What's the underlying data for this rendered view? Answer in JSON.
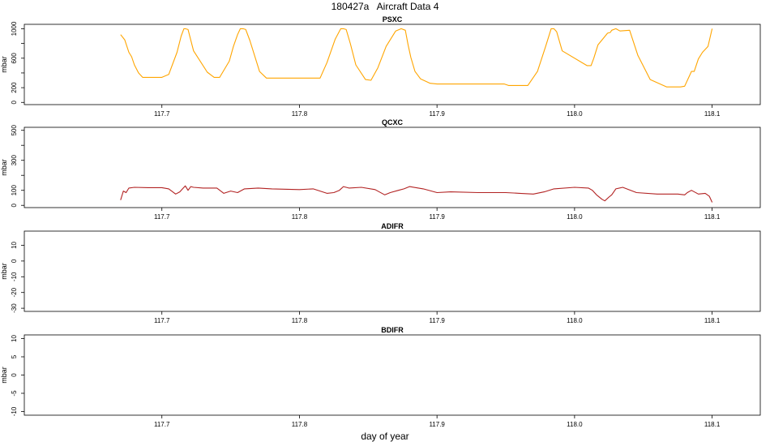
{
  "title": "180427a   Aircraft Data 4",
  "xlabel": "day of year",
  "chart_data": [
    {
      "type": "line",
      "title": "PSXC",
      "ylabel": "mbar",
      "color": "#FFA500",
      "xlim": [
        117.6,
        118.135
      ],
      "ylim": [
        -30,
        1060
      ],
      "xticks": [
        117.7,
        117.8,
        117.9,
        118.0,
        118.1
      ],
      "yticks": [
        0,
        200,
        600,
        1000
      ],
      "x": [
        117.67,
        117.673,
        117.676,
        117.678,
        117.68,
        117.683,
        117.686,
        117.69,
        117.7,
        117.705,
        117.711,
        117.714,
        117.716,
        117.717,
        117.719,
        117.723,
        117.733,
        117.738,
        117.742,
        117.749,
        117.752,
        117.755,
        117.757,
        117.759,
        117.761,
        117.764,
        117.771,
        117.776,
        117.782,
        117.801,
        117.815,
        117.82,
        117.826,
        117.83,
        117.832,
        117.834,
        117.837,
        117.841,
        117.848,
        117.852,
        117.857,
        117.863,
        117.87,
        117.874,
        117.877,
        117.879,
        117.881,
        117.884,
        117.888,
        117.895,
        117.9,
        117.91,
        117.93,
        117.949,
        117.952,
        117.966,
        117.973,
        117.979,
        117.983,
        117.985,
        117.987,
        117.991,
        118.009,
        118.012,
        118.014,
        118.017,
        118.024,
        118.026,
        118.027,
        118.03,
        118.033,
        118.04,
        118.046,
        118.055,
        118.067,
        118.074,
        118.077,
        118.08,
        118.085,
        118.087,
        118.09,
        118.093,
        118.097,
        118.1
      ],
      "y": [
        920,
        850,
        680,
        620,
        510,
        400,
        340,
        340,
        340,
        380,
        680,
        900,
        1000,
        1000,
        990,
        700,
        410,
        340,
        340,
        560,
        760,
        920,
        1000,
        1000,
        990,
        840,
        420,
        330,
        330,
        330,
        330,
        540,
        860,
        1000,
        1000,
        990,
        800,
        510,
        310,
        300,
        470,
        760,
        970,
        1000,
        980,
        780,
        610,
        420,
        320,
        260,
        250,
        250,
        250,
        250,
        230,
        230,
        420,
        760,
        1000,
        1000,
        960,
        700,
        500,
        500,
        600,
        780,
        940,
        950,
        980,
        1000,
        970,
        980,
        640,
        310,
        210,
        210,
        210,
        220,
        420,
        420,
        590,
        680,
        760,
        1000
      ]
    },
    {
      "type": "line",
      "title": "QCXC",
      "ylabel": "mbar",
      "color": "#B22222",
      "xlim": [
        117.6,
        118.135
      ],
      "ylim": [
        -15,
        520
      ],
      "xticks": [
        117.7,
        117.8,
        117.9,
        118.0,
        118.1
      ],
      "yticks": [
        0,
        100,
        300,
        500
      ],
      "x": [
        117.67,
        117.672,
        117.674,
        117.676,
        117.68,
        117.69,
        117.7,
        117.705,
        117.71,
        117.713,
        117.715,
        117.717,
        117.719,
        117.721,
        117.723,
        117.73,
        117.74,
        117.745,
        117.75,
        117.755,
        117.76,
        117.77,
        117.78,
        117.8,
        117.81,
        117.815,
        117.82,
        117.825,
        117.829,
        117.832,
        117.836,
        117.845,
        117.855,
        117.862,
        117.866,
        117.872,
        117.876,
        117.88,
        117.89,
        117.9,
        117.91,
        117.93,
        117.95,
        117.96,
        117.97,
        117.978,
        117.985,
        118.0,
        118.01,
        118.013,
        118.016,
        118.02,
        118.022,
        118.025,
        118.027,
        118.03,
        118.035,
        118.045,
        118.06,
        118.075,
        118.08,
        118.082,
        118.085,
        118.09,
        118.095,
        118.098,
        118.1
      ],
      "y": [
        35,
        95,
        85,
        115,
        120,
        118,
        118,
        110,
        75,
        90,
        110,
        130,
        100,
        125,
        120,
        115,
        115,
        80,
        95,
        85,
        110,
        115,
        110,
        105,
        110,
        95,
        80,
        85,
        100,
        125,
        115,
        120,
        105,
        70,
        85,
        100,
        110,
        125,
        110,
        85,
        90,
        85,
        85,
        80,
        75,
        90,
        110,
        120,
        115,
        100,
        70,
        40,
        30,
        55,
        70,
        110,
        120,
        85,
        75,
        75,
        70,
        85,
        100,
        75,
        80,
        60,
        20
      ]
    },
    {
      "type": "line",
      "title": "ADIFR",
      "ylabel": "mbar",
      "xlim": [
        117.6,
        118.135
      ],
      "ylim": [
        -32,
        19
      ],
      "xticks": [
        117.7,
        117.8,
        117.9,
        118.0,
        118.1
      ],
      "yticks": [
        -30,
        -20,
        -10,
        0,
        10
      ],
      "x": [],
      "y": []
    },
    {
      "type": "line",
      "title": "BDIFR",
      "ylabel": "mbar",
      "xlim": [
        117.6,
        118.135
      ],
      "ylim": [
        -11,
        11
      ],
      "xticks": [
        117.7,
        117.8,
        117.9,
        118.0,
        118.1
      ],
      "yticks": [
        -10,
        -5,
        0,
        5,
        10
      ],
      "x": [],
      "y": []
    }
  ]
}
